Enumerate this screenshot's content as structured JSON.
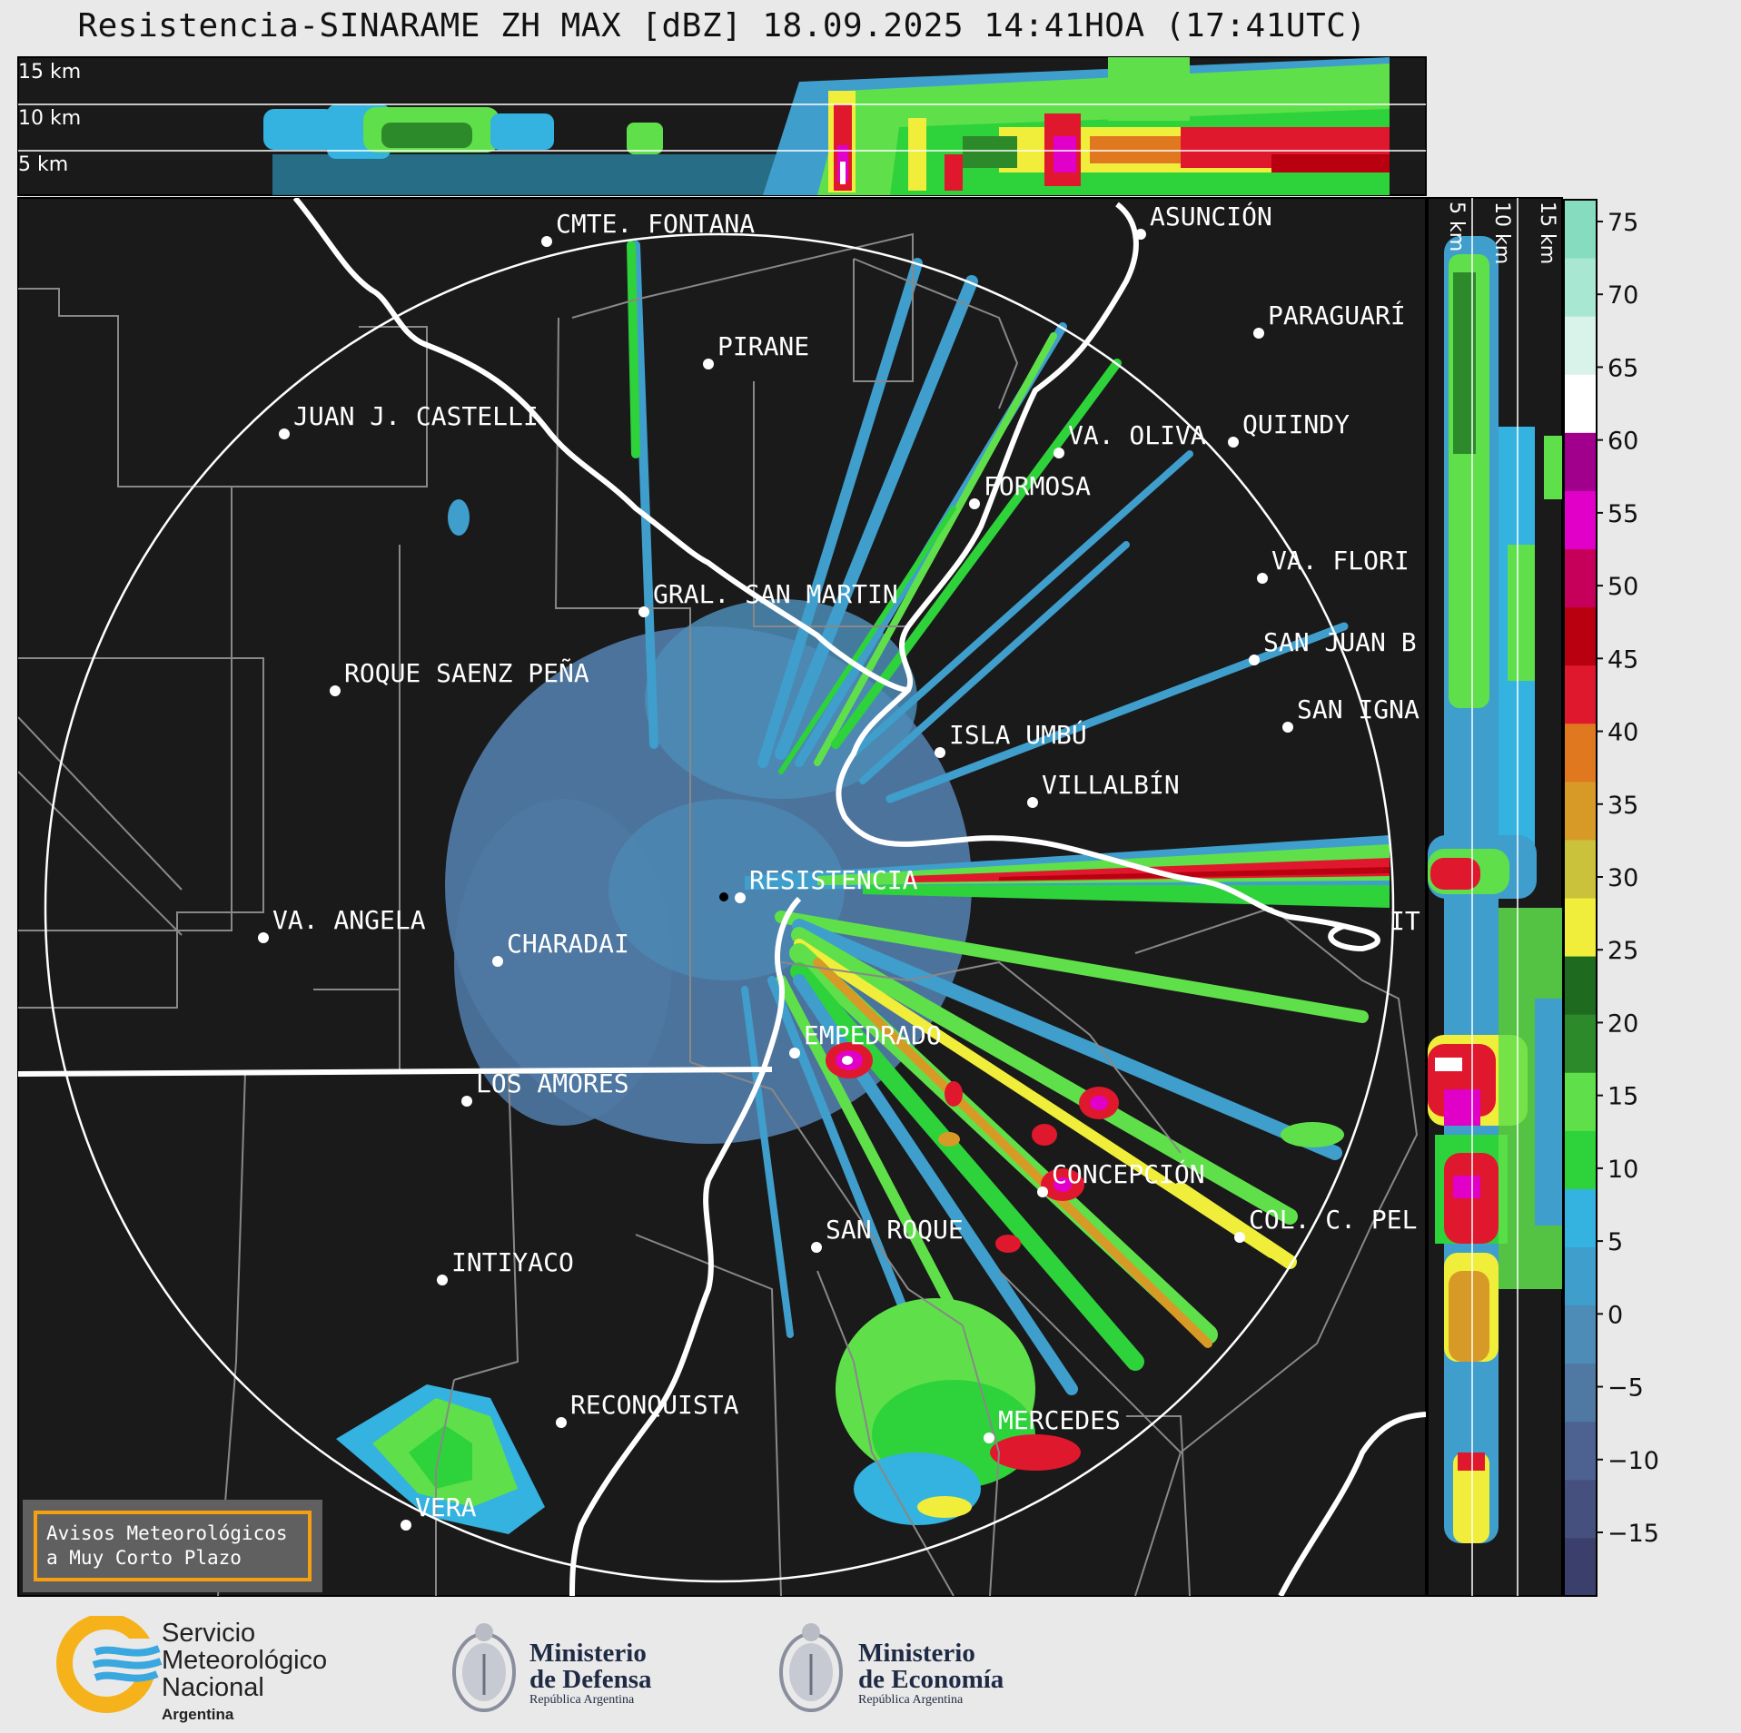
{
  "title": "Resistencia-SINARAME ZH MAX [dBZ] 18.09.2025 14:41HOA (17:41UTC)",
  "height_labels": [
    "15 km",
    "10 km",
    "5 km"
  ],
  "cities": [
    {
      "name": "CMTE. FONTANA"
    },
    {
      "name": "ASUNCIÓN"
    },
    {
      "name": "PARAGUARÍ"
    },
    {
      "name": "PIRANE"
    },
    {
      "name": "JUAN J. CASTELLI"
    },
    {
      "name": "VA. OLIVA"
    },
    {
      "name": "QUIINDY"
    },
    {
      "name": "FORMOSA"
    },
    {
      "name": "VA. FLORI"
    },
    {
      "name": "GRAL. SAN MARTIN"
    },
    {
      "name": "SAN JUAN B"
    },
    {
      "name": "ROQUE SAENZ PEÑA"
    },
    {
      "name": "SAN IGNA"
    },
    {
      "name": "ISLA UMBÚ"
    },
    {
      "name": "VILLALBÍN"
    },
    {
      "name": "RESISTENCIA"
    },
    {
      "name": "VA. ANGELA"
    },
    {
      "name": "CHARADAI"
    },
    {
      "name": "IT"
    },
    {
      "name": "EMPEDRADO"
    },
    {
      "name": "LOS AMORES"
    },
    {
      "name": "CONCEPCIÓN"
    },
    {
      "name": "COL. C. PEL"
    },
    {
      "name": "SAN ROQUE"
    },
    {
      "name": "INTIYACO"
    },
    {
      "name": "RECONQUISTA"
    },
    {
      "name": "MERCEDES"
    },
    {
      "name": "VERA"
    }
  ],
  "colorbar": {
    "ticks": [
      "75",
      "70",
      "65",
      "60",
      "55",
      "50",
      "45",
      "40",
      "35",
      "30",
      "25",
      "20",
      "15",
      "10",
      "5",
      "0",
      "−5",
      "−10",
      "−15"
    ],
    "colors": [
      "#3b3f6b",
      "#45507e",
      "#4d6290",
      "#4f78a3",
      "#4c8cb6",
      "#3f9ecc",
      "#34b2e0",
      "#2ed23a",
      "#5fe04a",
      "#2d8a2a",
      "#1e6b1f",
      "#f0ee3a",
      "#c9c23a",
      "#d89a26",
      "#e07820",
      "#e0182d",
      "#b80010",
      "#c6005a",
      "#e000c8",
      "#a0008c",
      "#ffffff",
      "#d9f3ea",
      "#a8e8d2",
      "#86dcbf"
    ]
  },
  "avisos": [
    "Avisos Meteorológicos",
    "a Muy Corto Plazo"
  ],
  "logos": {
    "smn": [
      "Servicio",
      "Meteorológico",
      "Nacional",
      "Argentina"
    ],
    "defensa": [
      "Ministerio",
      "de Defensa",
      "República Argentina"
    ],
    "economia": [
      "Ministerio",
      "de Economía",
      "República Argentina"
    ]
  }
}
